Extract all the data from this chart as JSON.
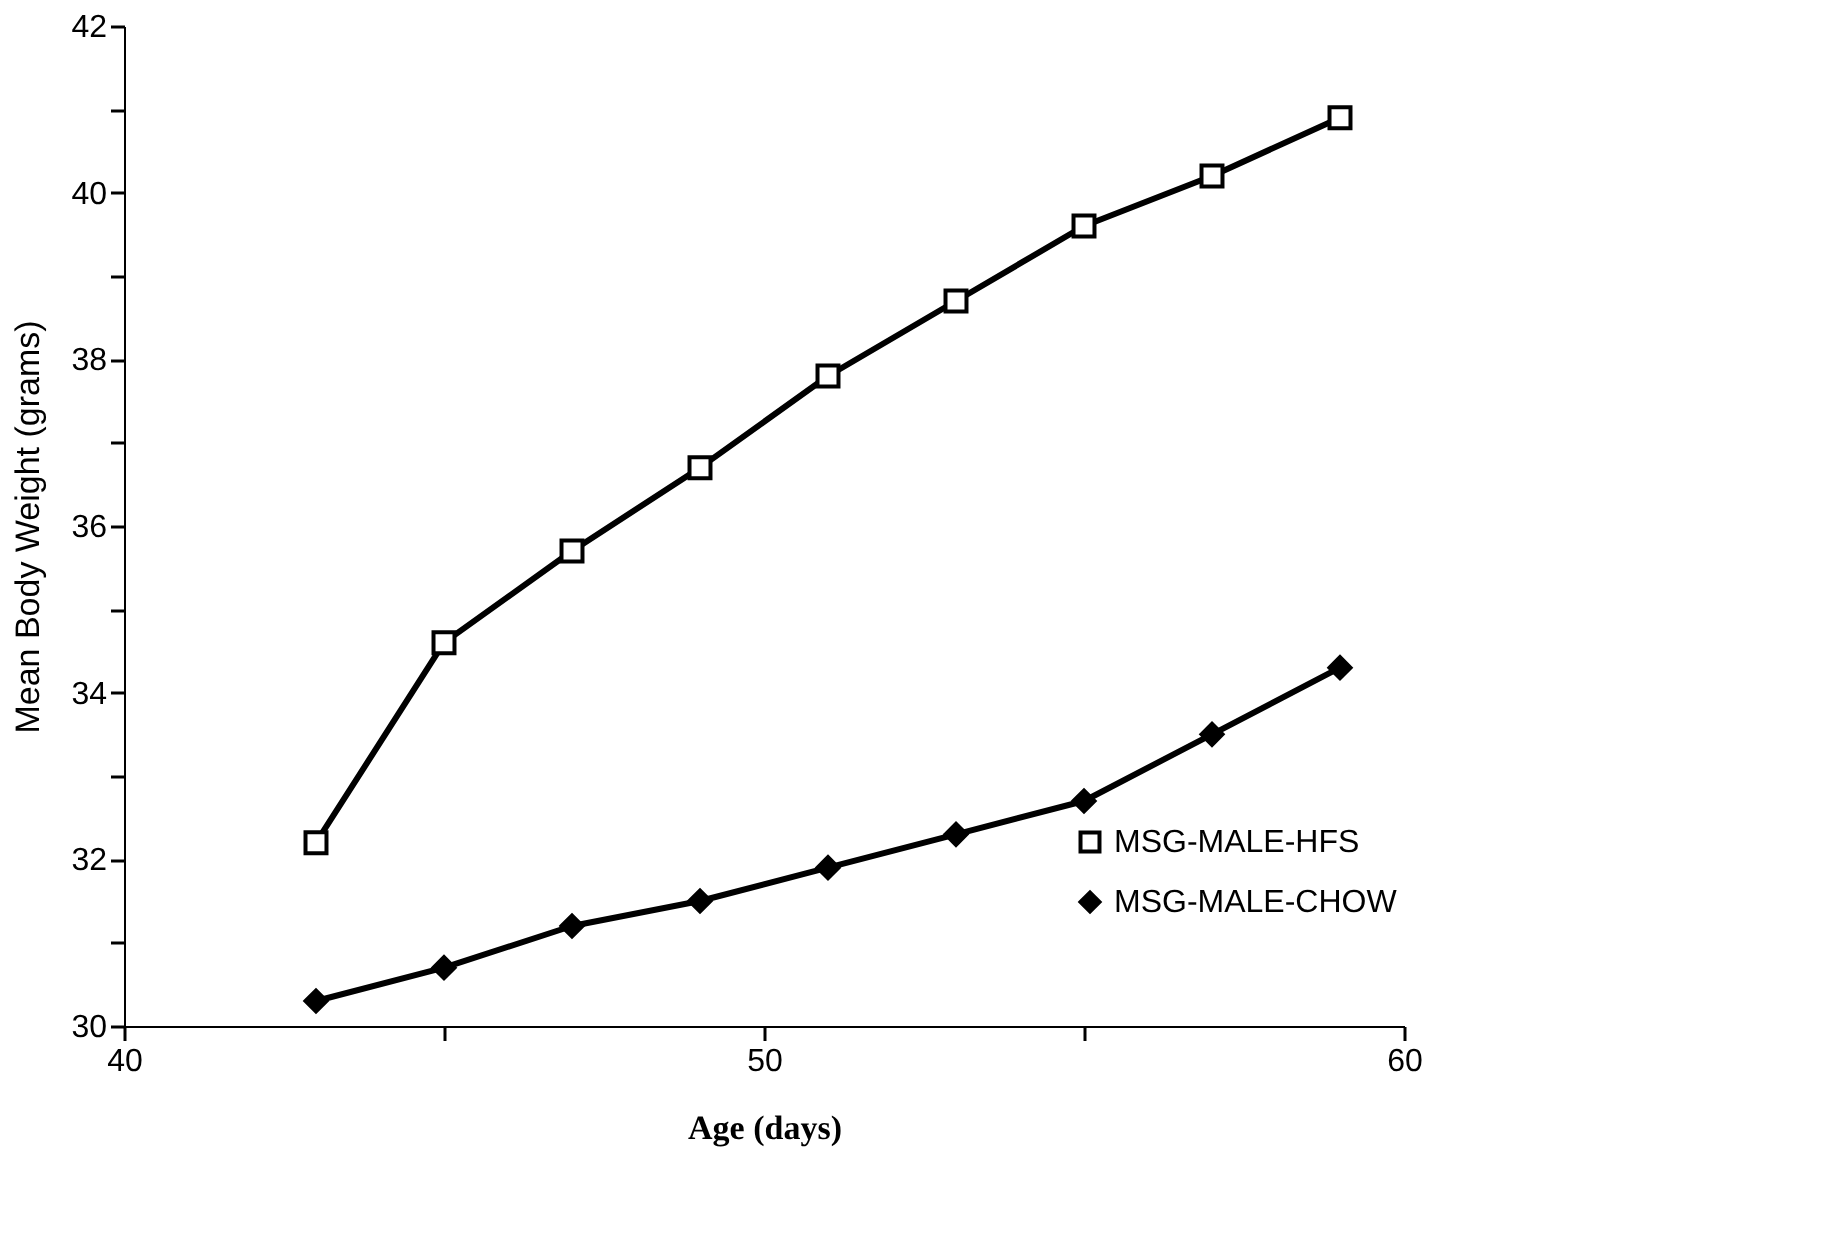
{
  "chart_data": {
    "type": "line",
    "xlabel": "Age (days)",
    "ylabel": "Mean Body Weight (grams)",
    "x": [
      43,
      45,
      47,
      49,
      51,
      53,
      55,
      57,
      59
    ],
    "series": [
      {
        "name": "MSG-MALE-HFS",
        "color": "#000000",
        "marker": "square",
        "values": [
          32.2,
          34.6,
          35.7,
          36.7,
          37.8,
          38.7,
          39.6,
          40.2,
          40.9
        ]
      },
      {
        "name": "MSG-MALE-CHOW",
        "color": "#000000",
        "marker": "diamond",
        "values": [
          30.3,
          30.7,
          31.2,
          31.5,
          31.9,
          32.3,
          32.7,
          33.5,
          34.3
        ]
      }
    ],
    "xlim": [
      40,
      60
    ],
    "ylim": [
      30,
      42
    ],
    "xticks": [
      40,
      {
        "value": 45,
        "label": null
      },
      50,
      {
        "value": 55,
        "label": null
      },
      60
    ],
    "yticks": [
      30,
      {
        "value": 31,
        "label": null
      },
      32,
      {
        "value": 33,
        "label": null
      },
      34,
      {
        "value": 35,
        "label": null
      },
      36,
      {
        "value": 37,
        "label": null
      },
      38,
      {
        "value": 39,
        "label": null
      },
      40,
      {
        "value": 41,
        "label": null
      },
      42
    ],
    "grid": false,
    "legend": "bottom right",
    "line_style": "solid"
  }
}
